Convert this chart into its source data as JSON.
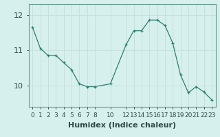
{
  "x": [
    0,
    1,
    2,
    3,
    4,
    5,
    6,
    7,
    8,
    10,
    12,
    13,
    14,
    15,
    16,
    17,
    18,
    19,
    20,
    21,
    22,
    23
  ],
  "y": [
    11.65,
    11.05,
    10.85,
    10.85,
    10.65,
    10.45,
    10.05,
    9.97,
    9.97,
    10.05,
    11.15,
    11.55,
    11.55,
    11.85,
    11.85,
    11.7,
    11.2,
    10.3,
    9.8,
    9.97,
    9.82,
    9.6
  ],
  "xticks": [
    0,
    1,
    2,
    3,
    4,
    5,
    6,
    7,
    8,
    10,
    12,
    13,
    14,
    15,
    16,
    17,
    18,
    19,
    20,
    21,
    22,
    23
  ],
  "yticks": [
    10,
    11,
    12
  ],
  "ylim": [
    9.4,
    12.3
  ],
  "xlim": [
    -0.5,
    23.5
  ],
  "xlabel": "Humidex (Indice chaleur)",
  "line_color": "#2e7d6e",
  "marker": "+",
  "bg_color": "#d6f0ee",
  "grid_color": "#c8e0dc",
  "axis_color": "#6a9a92",
  "tick_color": "#2e4a47",
  "xlabel_fontsize": 8,
  "ytick_fontsize": 8,
  "xtick_fontsize": 6.5
}
